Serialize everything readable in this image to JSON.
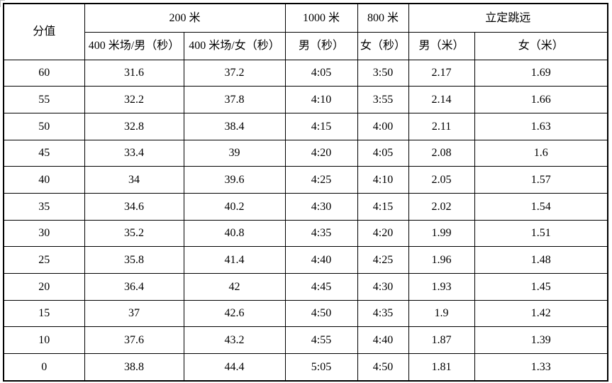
{
  "page": {
    "background_color": "#ffffff",
    "text_color": "#000000",
    "border_color": "#000000"
  },
  "table": {
    "header": {
      "score_label": "分值",
      "group_200m": "200 米",
      "col_400m_track_male": "400 米场/男（秒）",
      "col_400m_track_female": "400 米场/女（秒）",
      "group_1000m": "1000 米",
      "col_1000m_male": "男（秒）",
      "group_800m": "800 米",
      "col_800m_female": "女（秒）",
      "group_standing_long_jump": "立定跳远",
      "col_jump_male": "男（米）",
      "col_jump_female": "女（米）"
    },
    "rows": [
      [
        "60",
        "31.6",
        "37.2",
        "4:05",
        "3:50",
        "2.17",
        "1.69"
      ],
      [
        "55",
        "32.2",
        "37.8",
        "4:10",
        "3:55",
        "2.14",
        "1.66"
      ],
      [
        "50",
        "32.8",
        "38.4",
        "4:15",
        "4:00",
        "2.11",
        "1.63"
      ],
      [
        "45",
        "33.4",
        "39",
        "4:20",
        "4:05",
        "2.08",
        "1.6"
      ],
      [
        "40",
        "34",
        "39.6",
        "4:25",
        "4:10",
        "2.05",
        "1.57"
      ],
      [
        "35",
        "34.6",
        "40.2",
        "4:30",
        "4:15",
        "2.02",
        "1.54"
      ],
      [
        "30",
        "35.2",
        "40.8",
        "4:35",
        "4:20",
        "1.99",
        "1.51"
      ],
      [
        "25",
        "35.8",
        "41.4",
        "4:40",
        "4:25",
        "1.96",
        "1.48"
      ],
      [
        "20",
        "36.4",
        "42",
        "4:45",
        "4:30",
        "1.93",
        "1.45"
      ],
      [
        "15",
        "37",
        "42.6",
        "4:50",
        "4:35",
        "1.9",
        "1.42"
      ],
      [
        "10",
        "37.6",
        "43.2",
        "4:55",
        "4:40",
        "1.87",
        "1.39"
      ],
      [
        "0",
        "38.8",
        "44.4",
        "5:05",
        "4:50",
        "1.81",
        "1.33"
      ]
    ]
  }
}
